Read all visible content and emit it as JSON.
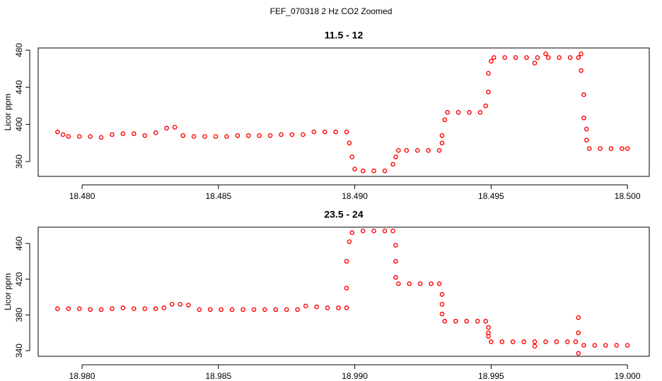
{
  "title": "FEF_070318  2 Hz CO2 Zoomed",
  "chart_data": [
    {
      "type": "scatter",
      "title": "11.5 - 12",
      "y_label": "Licor ppm",
      "color": "#ff0000",
      "x": [
        18.4791,
        18.4793,
        18.4795,
        18.4799,
        18.4803,
        18.4807,
        18.4811,
        18.4815,
        18.4819,
        18.4823,
        18.4827,
        18.4831,
        18.4834,
        18.4837,
        18.4841,
        18.4845,
        18.4849,
        18.4853,
        18.4857,
        18.4861,
        18.4865,
        18.4869,
        18.4873,
        18.4877,
        18.4881,
        18.4885,
        18.4889,
        18.4893,
        18.4897,
        18.4898,
        18.4899,
        18.49,
        18.4903,
        18.4907,
        18.4911,
        18.4914,
        18.4915,
        18.4916,
        18.4919,
        18.4923,
        18.4927,
        18.4931,
        18.4932,
        18.4932,
        18.4933,
        18.4934,
        18.4938,
        18.4942,
        18.4946,
        18.4948,
        18.4949,
        18.4949,
        18.495,
        18.4951,
        18.4955,
        18.4959,
        18.4963,
        18.4966,
        18.4967,
        18.497,
        18.4971,
        18.4975,
        18.4979,
        18.4982,
        18.4983,
        18.4983,
        18.4984,
        18.4984,
        18.4985,
        18.4985,
        18.4986,
        18.499,
        18.4994,
        18.4998,
        18.5
      ],
      "values": [
        392,
        389,
        387,
        387,
        387,
        386,
        389,
        390,
        390,
        388,
        391,
        396,
        397,
        388,
        387,
        387,
        387,
        387,
        388,
        388,
        388,
        388,
        389,
        389,
        389,
        392,
        392,
        392,
        392,
        380,
        365,
        352,
        350,
        350,
        350,
        357,
        365,
        372,
        372,
        372,
        372,
        372,
        380,
        388,
        405,
        413,
        413,
        413,
        413,
        420,
        435,
        455,
        468,
        472,
        472,
        472,
        472,
        466,
        472,
        476,
        472,
        472,
        472,
        472,
        476,
        458,
        432,
        407,
        395,
        383,
        374,
        374,
        374,
        374,
        374
      ],
      "xlim": [
        18.47839,
        18.5008
      ],
      "ylim": [
        344.05,
        482.3
      ],
      "xticks": [
        {
          "value": 18.48,
          "label": "18.480"
        },
        18.485,
        {
          "value": 18.49,
          "label": "18.490"
        },
        18.495,
        {
          "value": 18.5,
          "label": "18.500"
        }
      ],
      "yticks": [
        360,
        400,
        440,
        480
      ]
    },
    {
      "type": "scatter",
      "title": "23.5 - 24",
      "y_label": "Licor ppm",
      "color": "#ff0000",
      "x": [
        18.9791,
        18.9795,
        18.9799,
        18.9803,
        18.9807,
        18.9811,
        18.9815,
        18.9819,
        18.9823,
        18.9827,
        18.983,
        18.9833,
        18.9836,
        18.9839,
        18.9843,
        18.9847,
        18.9851,
        18.9855,
        18.9859,
        18.9863,
        18.9867,
        18.9871,
        18.9875,
        18.9879,
        18.9882,
        18.9886,
        18.989,
        18.9894,
        18.9897,
        18.9897,
        18.9897,
        18.9898,
        18.9899,
        18.9903,
        18.9907,
        18.9911,
        18.9914,
        18.9915,
        18.9915,
        18.9915,
        18.9916,
        18.992,
        18.9924,
        18.9928,
        18.9931,
        18.9932,
        18.9932,
        18.9932,
        18.9933,
        18.9937,
        18.9941,
        18.9945,
        18.9948,
        18.9949,
        18.9949,
        18.9949,
        18.995,
        18.9954,
        18.9958,
        18.9962,
        18.9966,
        18.9966,
        18.997,
        18.9974,
        18.9978,
        18.9981,
        18.9982,
        18.9982,
        18.9982,
        18.9984,
        18.9988,
        18.9992,
        18.9996,
        19.0
      ],
      "values": [
        387,
        387,
        387,
        386,
        386,
        387,
        388,
        387,
        387,
        387,
        388,
        392,
        392,
        391,
        386,
        386,
        386,
        386,
        386,
        386,
        386,
        386,
        386,
        386,
        390,
        389,
        388,
        388,
        388,
        410,
        440,
        462,
        472,
        474,
        474,
        474,
        474,
        458,
        440,
        422,
        415,
        415,
        415,
        415,
        415,
        403,
        392,
        381,
        373,
        373,
        373,
        373,
        373,
        366,
        360,
        356,
        350,
        350,
        350,
        350,
        350,
        345,
        350,
        350,
        350,
        350,
        377,
        360,
        337,
        346,
        346,
        346,
        346,
        346
      ],
      "xlim": [
        18.97839,
        19.0008
      ],
      "ylim": [
        333.7,
        478.2
      ],
      "xticks": [
        {
          "value": 18.98,
          "label": "18.980"
        },
        18.985,
        {
          "value": 18.99,
          "label": "18.990"
        },
        18.995,
        {
          "value": 19.0,
          "label": "19.000"
        }
      ],
      "yticks": [
        340,
        380,
        420,
        460
      ]
    }
  ]
}
